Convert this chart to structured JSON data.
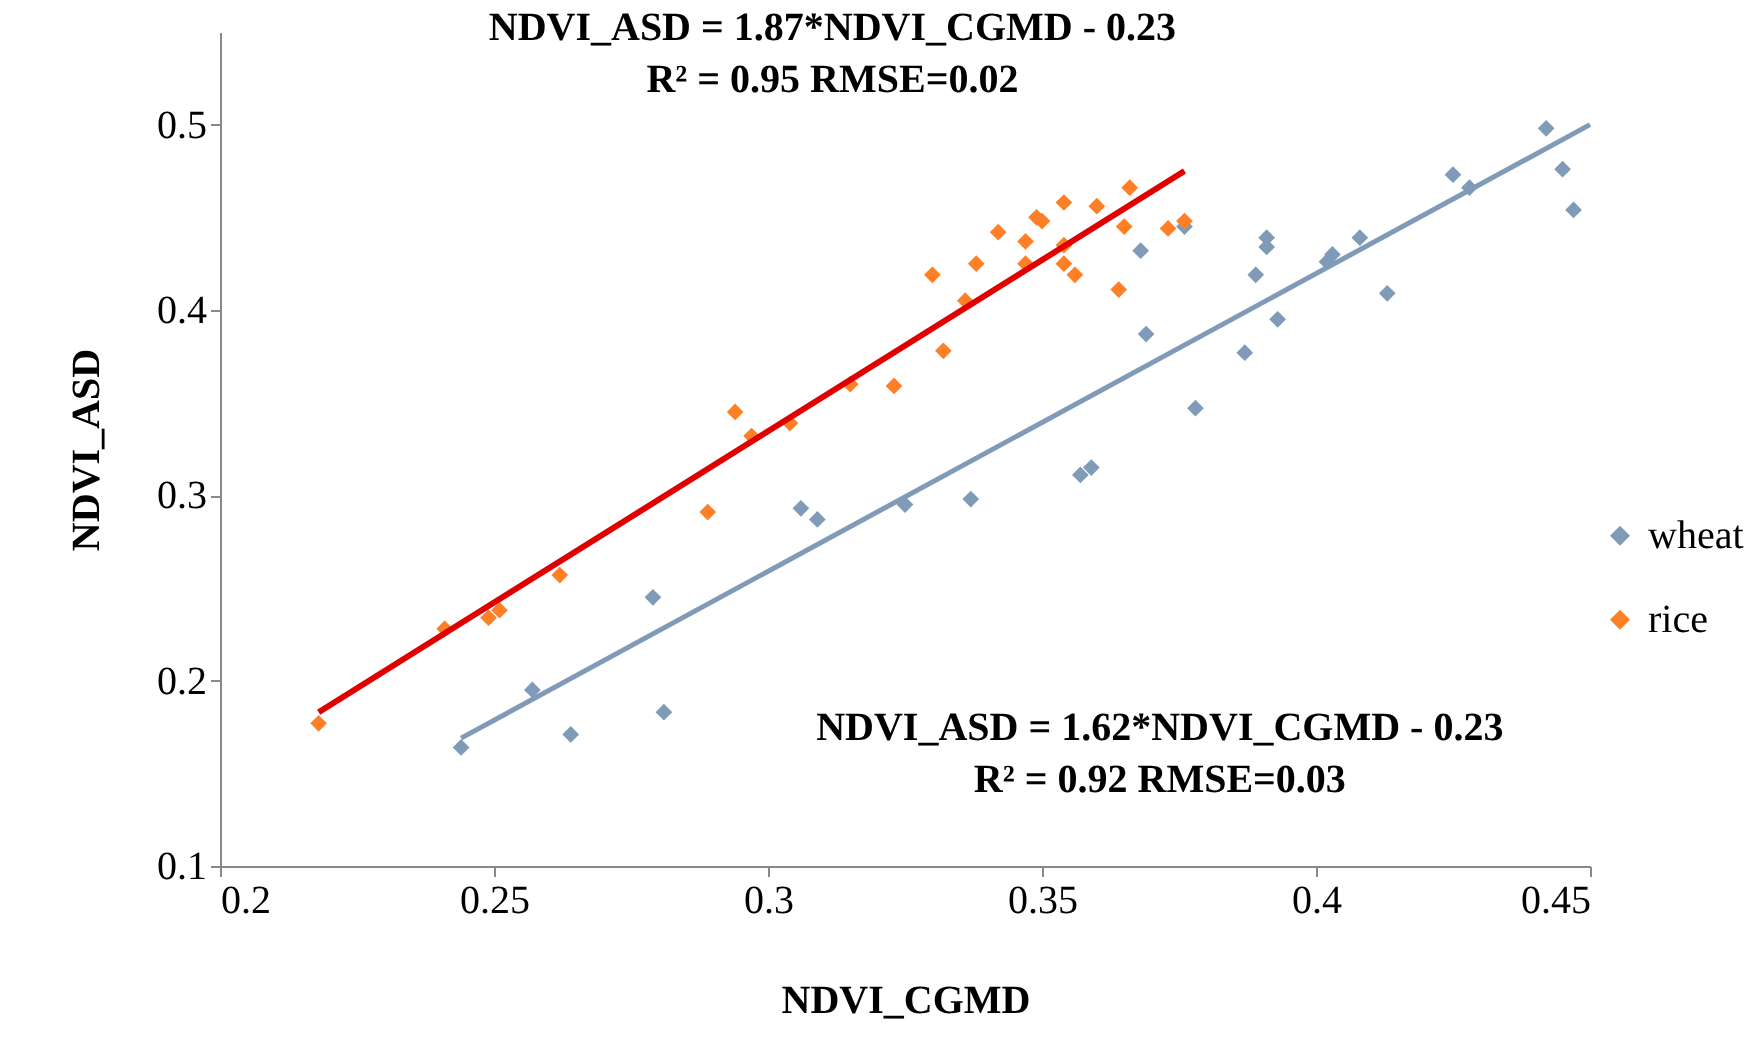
{
  "chart_data": {
    "type": "scatter",
    "xlabel": "NDVI_CGMD",
    "ylabel": "NDVI_ASD",
    "xlim": [
      0.2,
      0.45
    ],
    "xticks": [
      0.2,
      0.25,
      0.3,
      0.35,
      0.4,
      0.45
    ],
    "ylim": [
      0.1,
      0.55
    ],
    "yticks": [
      0.1,
      0.2,
      0.3,
      0.4,
      0.5
    ],
    "grid": false,
    "legend": "right",
    "marker": "diamond",
    "annotations": [
      "NDVI_ASD = 1.87*NDVI_CGMD - 0.23\nR² = 0.95  RMSE=0.02",
      "NDVI_ASD = 1.62*NDVI_CGMD - 0.23\nR² = 0.92  RMSE=0.03"
    ],
    "series": [
      {
        "name": "wheat",
        "color": "#7f9bb8",
        "x": [
          0.244,
          0.257,
          0.264,
          0.279,
          0.281,
          0.306,
          0.309,
          0.325,
          0.337,
          0.357,
          0.359,
          0.368,
          0.369,
          0.376,
          0.378,
          0.387,
          0.389,
          0.391,
          0.391,
          0.393,
          0.402,
          0.403,
          0.408,
          0.413,
          0.425,
          0.428,
          0.442,
          0.445,
          0.447
        ],
        "values": [
          0.164,
          0.195,
          0.171,
          0.245,
          0.183,
          0.293,
          0.287,
          0.295,
          0.298,
          0.311,
          0.315,
          0.432,
          0.387,
          0.445,
          0.347,
          0.377,
          0.419,
          0.439,
          0.434,
          0.395,
          0.426,
          0.43,
          0.439,
          0.409,
          0.473,
          0.466,
          0.498,
          0.476,
          0.454
        ]
      },
      {
        "name": "rice",
        "color": "#ff7f27",
        "x": [
          0.218,
          0.241,
          0.249,
          0.251,
          0.262,
          0.289,
          0.294,
          0.297,
          0.304,
          0.315,
          0.323,
          0.33,
          0.332,
          0.336,
          0.338,
          0.342,
          0.347,
          0.347,
          0.349,
          0.35,
          0.354,
          0.354,
          0.354,
          0.356,
          0.36,
          0.364,
          0.365,
          0.366,
          0.373,
          0.376
        ],
        "values": [
          0.177,
          0.228,
          0.234,
          0.238,
          0.257,
          0.291,
          0.345,
          0.332,
          0.339,
          0.36,
          0.359,
          0.419,
          0.378,
          0.405,
          0.425,
          0.442,
          0.425,
          0.437,
          0.45,
          0.448,
          0.458,
          0.435,
          0.425,
          0.419,
          0.456,
          0.411,
          0.445,
          0.466,
          0.444,
          0.448
        ]
      },
      {
        "type": "line",
        "marker": "none",
        "color": "#e00000",
        "x": [
          0.218,
          0.376
        ],
        "values": [
          0.183,
          0.475
        ]
      },
      {
        "type": "line",
        "marker": "none",
        "color": "#7f9bb8",
        "x": [
          0.244,
          0.45
        ],
        "values": [
          0.169,
          0.5
        ]
      }
    ]
  }
}
